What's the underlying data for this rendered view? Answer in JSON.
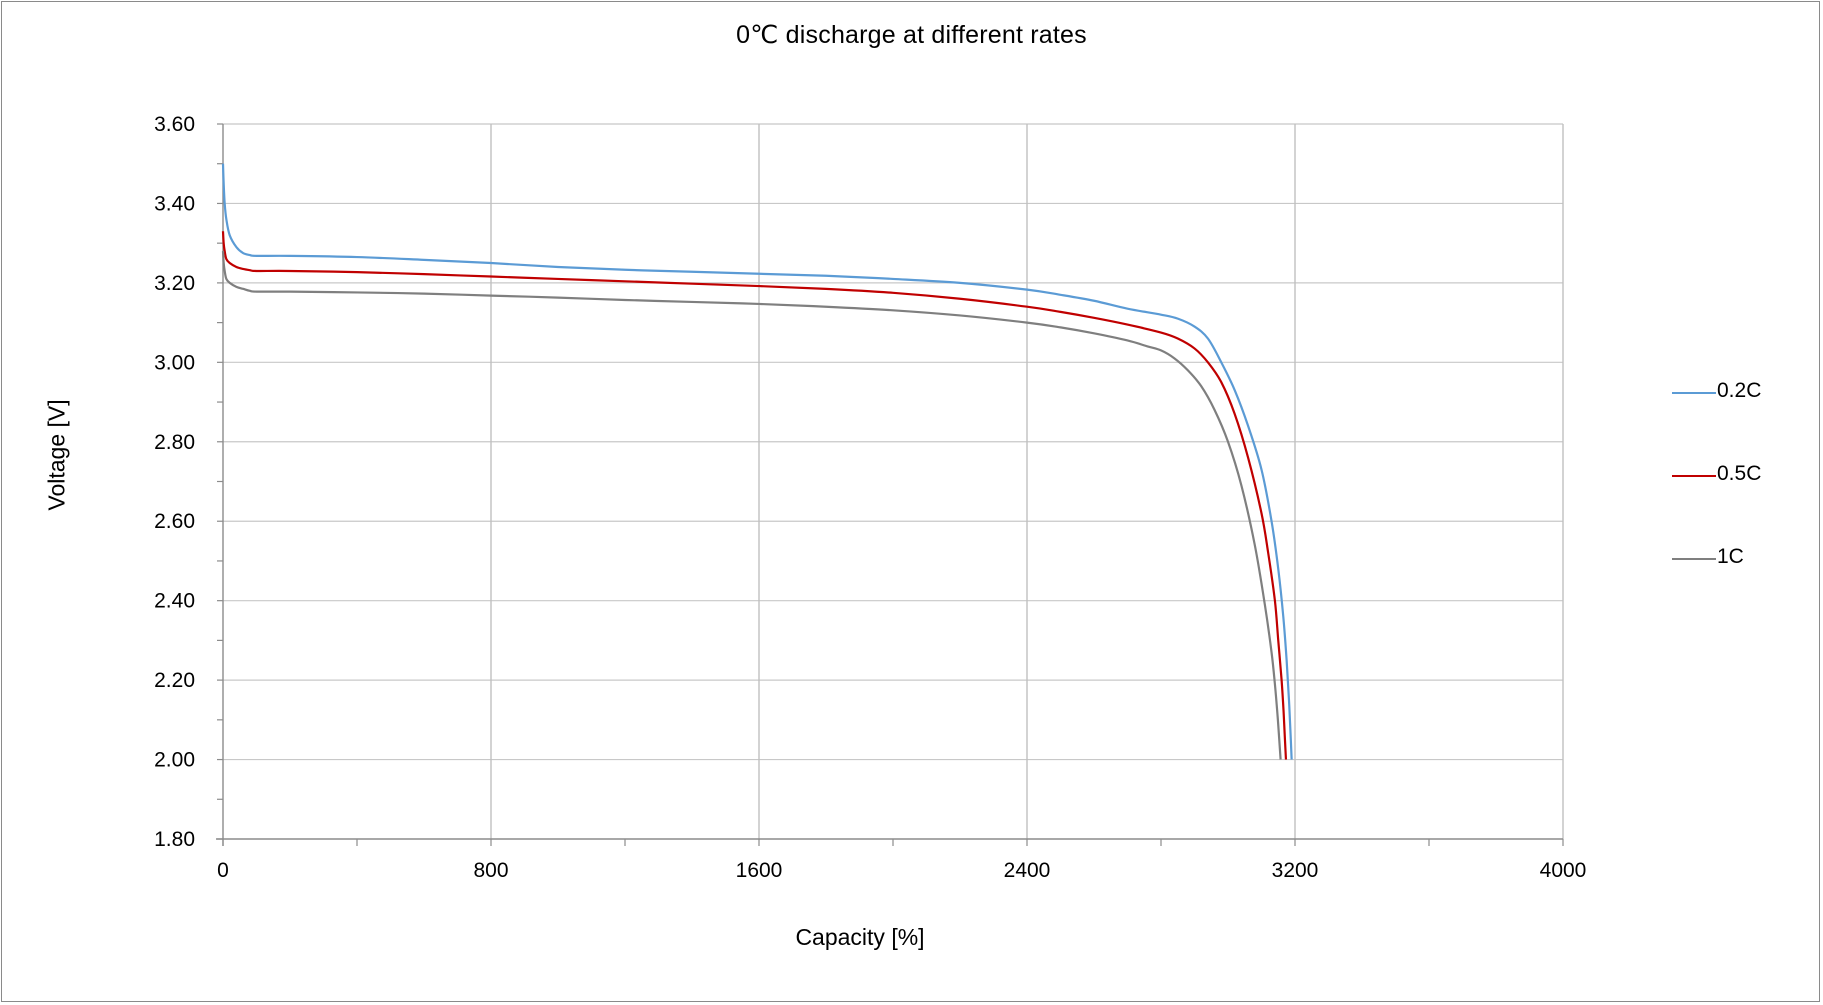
{
  "chart_data": {
    "type": "line",
    "title": "0℃ discharge at different rates",
    "xlabel": "Capacity [%]",
    "ylabel": "Voltage [V]",
    "xlim": [
      0,
      4000
    ],
    "ylim": [
      1.8,
      3.6
    ],
    "x_ticks": [
      "0",
      "800",
      "1600",
      "2400",
      "3200",
      "4000"
    ],
    "x_tick_values": [
      0,
      800,
      1600,
      2400,
      3200,
      4000
    ],
    "y_ticks": [
      "1.80",
      "2.00",
      "2.20",
      "2.40",
      "2.60",
      "2.80",
      "3.00",
      "3.20",
      "3.40",
      "3.60"
    ],
    "y_tick_values": [
      1.8,
      2.0,
      2.2,
      2.4,
      2.6,
      2.8,
      3.0,
      3.2,
      3.4,
      3.6
    ],
    "x_minor_step": 400,
    "y_minor_step": 0.1,
    "grid": true,
    "legend_position": "right",
    "series": [
      {
        "name": "0.2C",
        "color": "#5b9bd5",
        "x": [
          0,
          2,
          5,
          10,
          20,
          40,
          60,
          80,
          100,
          200,
          400,
          600,
          800,
          1000,
          1200,
          1400,
          1600,
          1800,
          2000,
          2200,
          2400,
          2500,
          2600,
          2700,
          2800,
          2850,
          2900,
          2940,
          2980,
          3020,
          3060,
          3100,
          3130,
          3150,
          3165,
          3175,
          3182,
          3187,
          3190
        ],
        "y": [
          3.5,
          3.45,
          3.4,
          3.36,
          3.32,
          3.29,
          3.275,
          3.27,
          3.268,
          3.268,
          3.265,
          3.258,
          3.25,
          3.24,
          3.233,
          3.228,
          3.223,
          3.218,
          3.21,
          3.2,
          3.183,
          3.17,
          3.155,
          3.135,
          3.12,
          3.11,
          3.09,
          3.06,
          3.0,
          2.93,
          2.84,
          2.73,
          2.6,
          2.48,
          2.36,
          2.25,
          2.15,
          2.06,
          2.0
        ]
      },
      {
        "name": "0.5C",
        "color": "#c00000",
        "x": [
          0,
          2,
          5,
          10,
          20,
          40,
          60,
          80,
          100,
          200,
          400,
          600,
          800,
          1000,
          1200,
          1400,
          1600,
          1800,
          2000,
          2200,
          2400,
          2500,
          2600,
          2700,
          2800,
          2850,
          2900,
          2940,
          2980,
          3020,
          3060,
          3100,
          3120,
          3140,
          3150,
          3160,
          3166,
          3170,
          3173
        ],
        "y": [
          3.33,
          3.3,
          3.28,
          3.26,
          3.25,
          3.24,
          3.235,
          3.232,
          3.23,
          3.23,
          3.227,
          3.222,
          3.216,
          3.21,
          3.204,
          3.198,
          3.192,
          3.185,
          3.175,
          3.16,
          3.14,
          3.127,
          3.112,
          3.095,
          3.075,
          3.06,
          3.035,
          3.0,
          2.95,
          2.87,
          2.76,
          2.62,
          2.52,
          2.4,
          2.3,
          2.2,
          2.12,
          2.05,
          2.0
        ]
      },
      {
        "name": "1C",
        "color": "#7f7f7f",
        "x": [
          0,
          2,
          5,
          10,
          20,
          40,
          60,
          80,
          100,
          200,
          400,
          600,
          800,
          1000,
          1200,
          1400,
          1600,
          1800,
          2000,
          2200,
          2400,
          2500,
          2600,
          2700,
          2760,
          2800,
          2840,
          2880,
          2920,
          2960,
          3000,
          3040,
          3080,
          3110,
          3130,
          3140,
          3148,
          3153,
          3157
        ],
        "y": [
          3.28,
          3.25,
          3.23,
          3.21,
          3.2,
          3.19,
          3.185,
          3.18,
          3.178,
          3.178,
          3.176,
          3.173,
          3.168,
          3.163,
          3.157,
          3.152,
          3.147,
          3.14,
          3.131,
          3.118,
          3.1,
          3.088,
          3.073,
          3.055,
          3.04,
          3.03,
          3.01,
          2.98,
          2.94,
          2.88,
          2.8,
          2.69,
          2.54,
          2.39,
          2.27,
          2.19,
          2.11,
          2.05,
          2.0
        ]
      }
    ]
  }
}
